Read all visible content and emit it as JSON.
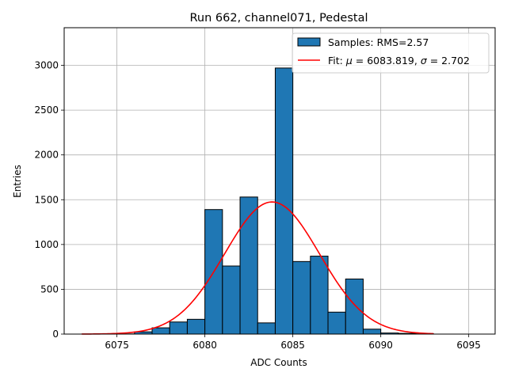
{
  "chart_data": {
    "type": "bar",
    "title": "Run 662, channel071, Pedestal",
    "xlabel": "ADC Counts",
    "ylabel": "Entries",
    "xlim": [
      6072,
      6096.5
    ],
    "ylim": [
      0,
      3420
    ],
    "xticks": [
      6075,
      6080,
      6085,
      6090,
      6095
    ],
    "yticks": [
      0,
      500,
      1000,
      1500,
      2000,
      2500,
      3000
    ],
    "grid": true,
    "legend_position": "top-right",
    "histogram": {
      "name": "Samples: RMS=2.57",
      "color": "#1f77b4",
      "bin_width": 1,
      "bin_left_edges": [
        6075,
        6076,
        6077,
        6078,
        6079,
        6080,
        6081,
        6082,
        6083,
        6084,
        6085,
        6086,
        6087,
        6088,
        6089,
        6090,
        6091,
        6092
      ],
      "values": [
        2,
        25,
        70,
        135,
        165,
        1390,
        760,
        1530,
        125,
        2970,
        810,
        870,
        245,
        615,
        55,
        12,
        8,
        3
      ]
    },
    "fit": {
      "legend_prefix": "Fit: ",
      "mu_symbol": "μ",
      "mu_text": " = 6083.819, ",
      "sigma_symbol": "σ",
      "sigma_text": " = 2.702",
      "color": "#ff0000",
      "mu": 6083.819,
      "sigma": 2.702,
      "amplitude": 1475,
      "x_range": [
        6073,
        6093
      ]
    }
  }
}
